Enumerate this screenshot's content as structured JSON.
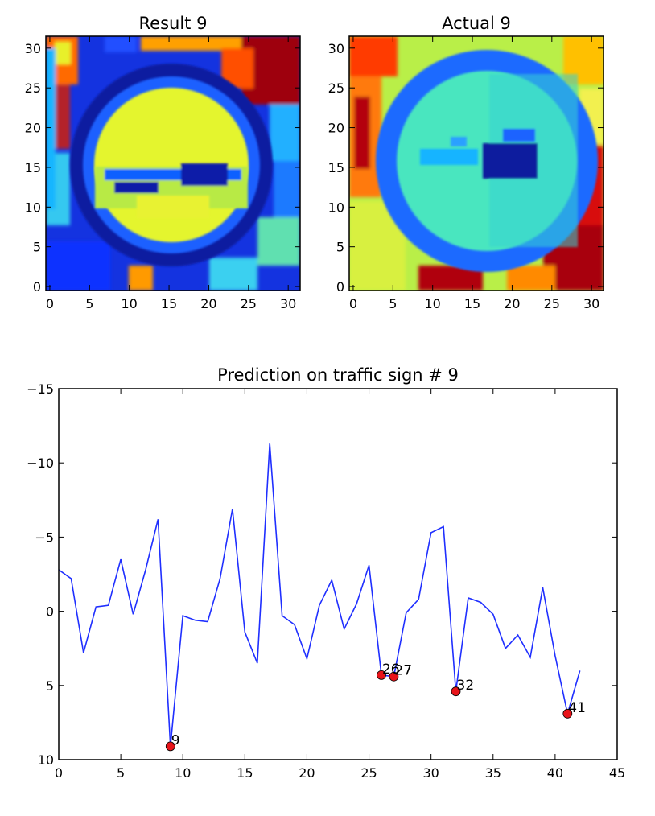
{
  "chart_data": [
    {
      "type": "heatmap",
      "title": "Result 9",
      "colormap": "jet",
      "image_size": [
        32,
        32
      ],
      "xlim": [
        -0.5,
        31.5
      ],
      "ylim": [
        31.5,
        -0.5
      ],
      "xticks": [
        0,
        5,
        10,
        15,
        20,
        25,
        30
      ],
      "yticks": [
        0,
        5,
        10,
        15,
        20,
        25,
        30
      ],
      "content": "circular prohibition traffic sign, yellow center with dark blue bars"
    },
    {
      "type": "heatmap",
      "title": "Actual 9",
      "colormap": "jet",
      "image_size": [
        32,
        32
      ],
      "xlim": [
        -0.5,
        31.5
      ],
      "ylim": [
        31.5,
        -0.5
      ],
      "xticks": [
        0,
        5,
        10,
        15,
        20,
        25,
        30
      ],
      "yticks": [
        0,
        5,
        10,
        15,
        20,
        25,
        30
      ],
      "content": "no passing traffic sign, cyan center with light bar and dark bar"
    },
    {
      "type": "line",
      "title": "Prediction on traffic sign # 9",
      "xlabel": "",
      "ylabel": "",
      "xlim": [
        0,
        45
      ],
      "ylim": [
        -15,
        10
      ],
      "xticks": [
        0,
        5,
        10,
        15,
        20,
        25,
        30,
        35,
        40,
        45
      ],
      "yticks": [
        -15,
        -10,
        -5,
        0,
        5,
        10
      ],
      "grid": false,
      "series": [
        {
          "color": "#1f2fff",
          "x": [
            0,
            1,
            2,
            3,
            4,
            5,
            6,
            7,
            8,
            9,
            10,
            11,
            12,
            13,
            14,
            15,
            16,
            17,
            18,
            19,
            20,
            21,
            22,
            23,
            24,
            25,
            26,
            27,
            28,
            29,
            30,
            31,
            32,
            33,
            34,
            35,
            36,
            37,
            38,
            39,
            40,
            41,
            42
          ],
          "y": [
            -2.8,
            -2.2,
            2.8,
            -0.3,
            -0.4,
            -3.5,
            0.2,
            -2.8,
            -6.2,
            9.1,
            0.3,
            0.6,
            0.7,
            -2.2,
            -6.9,
            1.4,
            3.5,
            -11.3,
            0.3,
            0.9,
            3.2,
            -0.4,
            -2.1,
            1.2,
            -0.5,
            -3.1,
            4.3,
            4.4,
            0.1,
            -0.8,
            -5.3,
            -5.7,
            5.4,
            -0.9,
            -0.6,
            0.2,
            2.5,
            1.6,
            3.1,
            -1.6,
            3.0,
            6.9,
            4.0
          ]
        }
      ],
      "highlights": [
        {
          "x": 9,
          "y": 9.1,
          "label": "9"
        },
        {
          "x": 26,
          "y": 4.3,
          "label": "26"
        },
        {
          "x": 27,
          "y": 4.4,
          "label": "27"
        },
        {
          "x": 32,
          "y": 5.4,
          "label": "32"
        },
        {
          "x": 41,
          "y": 6.9,
          "label": "41"
        }
      ],
      "marker_color": "#e8141a"
    }
  ]
}
